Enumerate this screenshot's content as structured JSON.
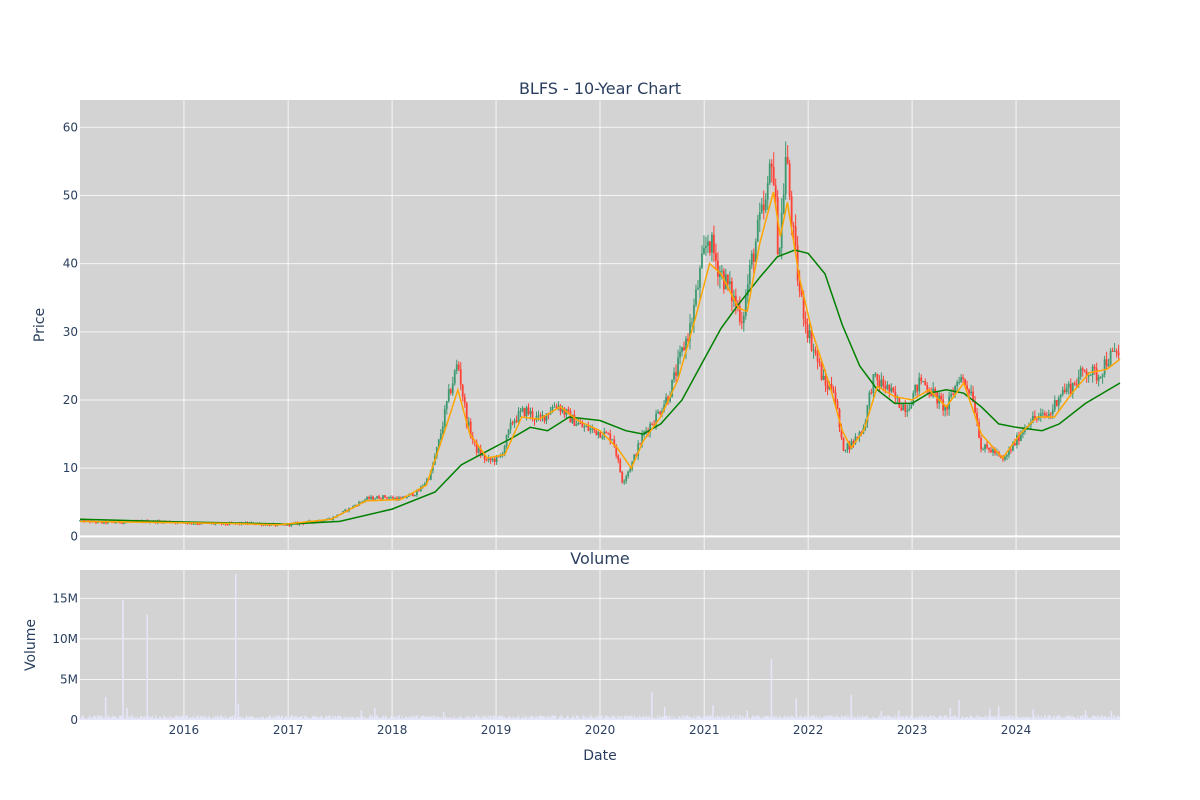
{
  "chart_data": [
    {
      "type": "candlestick",
      "title": "BLFS - 10-Year Chart",
      "ylabel": "Price",
      "xlabel": "",
      "xlim": [
        "2015-01-01",
        "2024-12-31"
      ],
      "ylim": [
        -2,
        64
      ],
      "grid": true,
      "yticks": [
        0,
        10,
        20,
        30,
        40,
        50,
        60
      ],
      "colors": {
        "up": "#3d9970",
        "down": "#ff4136",
        "ma_short": "#ffa500",
        "ma_long": "#008000",
        "plot_bg": "#d3d3d3"
      },
      "price_points": [
        [
          "2015-01-01",
          2.3
        ],
        [
          "2015-03-15",
          2.0
        ],
        [
          "2015-06-01",
          2.1
        ],
        [
          "2015-09-01",
          2.2
        ],
        [
          "2015-12-01",
          2.1
        ],
        [
          "2016-03-01",
          1.9
        ],
        [
          "2016-06-01",
          1.8
        ],
        [
          "2016-09-01",
          1.9
        ],
        [
          "2016-12-01",
          1.6
        ],
        [
          "2017-03-01",
          2.0
        ],
        [
          "2017-06-01",
          2.6
        ],
        [
          "2017-08-01",
          4.0
        ],
        [
          "2017-10-01",
          5.5
        ],
        [
          "2017-12-01",
          5.8
        ],
        [
          "2018-02-01",
          5.5
        ],
        [
          "2018-04-01",
          6.5
        ],
        [
          "2018-05-15",
          9.0
        ],
        [
          "2018-06-15",
          14.0
        ],
        [
          "2018-07-15",
          20.0
        ],
        [
          "2018-08-20",
          25.5
        ],
        [
          "2018-09-20",
          17.0
        ],
        [
          "2018-10-20",
          13.0
        ],
        [
          "2018-12-01",
          11.0
        ],
        [
          "2019-01-15",
          11.5
        ],
        [
          "2019-03-01",
          17.0
        ],
        [
          "2019-04-15",
          18.5
        ],
        [
          "2019-06-01",
          17.0
        ],
        [
          "2019-08-01",
          19.5
        ],
        [
          "2019-09-15",
          17.5
        ],
        [
          "2019-11-01",
          16.0
        ],
        [
          "2019-12-15",
          15.5
        ],
        [
          "2020-02-15",
          14.5
        ],
        [
          "2020-03-20",
          8.0
        ],
        [
          "2020-04-20",
          10.5
        ],
        [
          "2020-06-01",
          15.0
        ],
        [
          "2020-07-15",
          17.5
        ],
        [
          "2020-09-01",
          21.0
        ],
        [
          "2020-10-15",
          27.0
        ],
        [
          "2020-11-15",
          31.0
        ],
        [
          "2020-12-15",
          38.0
        ],
        [
          "2021-01-15",
          44.0
        ],
        [
          "2021-02-15",
          40.0
        ],
        [
          "2021-04-01",
          36.0
        ],
        [
          "2021-05-15",
          32.0
        ],
        [
          "2021-06-15",
          40.0
        ],
        [
          "2021-07-15",
          46.0
        ],
        [
          "2021-08-10",
          49.0
        ],
        [
          "2021-08-25",
          57.0
        ],
        [
          "2021-09-20",
          41.0
        ],
        [
          "2021-10-15",
          56.0
        ],
        [
          "2021-11-10",
          44.0
        ],
        [
          "2021-12-01",
          36.0
        ],
        [
          "2022-01-01",
          30.0
        ],
        [
          "2022-02-01",
          26.0
        ],
        [
          "2022-03-01",
          22.0
        ],
        [
          "2022-04-01",
          22.0
        ],
        [
          "2022-05-01",
          13.0
        ],
        [
          "2022-06-01",
          13.5
        ],
        [
          "2022-07-15",
          16.0
        ],
        [
          "2022-08-15",
          23.0
        ],
        [
          "2022-10-01",
          22.0
        ],
        [
          "2022-11-15",
          19.5
        ],
        [
          "2022-12-15",
          19.0
        ],
        [
          "2023-02-01",
          23.0
        ],
        [
          "2023-03-15",
          21.0
        ],
        [
          "2023-05-01",
          18.5
        ],
        [
          "2023-06-15",
          23.5
        ],
        [
          "2023-08-01",
          21.0
        ],
        [
          "2023-09-01",
          13.0
        ],
        [
          "2023-10-15",
          12.5
        ],
        [
          "2023-11-15",
          11.0
        ],
        [
          "2024-01-01",
          14.0
        ],
        [
          "2024-02-15",
          17.0
        ],
        [
          "2024-04-01",
          17.5
        ],
        [
          "2024-05-01",
          18.0
        ],
        [
          "2024-06-01",
          21.0
        ],
        [
          "2024-07-15",
          22.0
        ],
        [
          "2024-09-01",
          24.5
        ],
        [
          "2024-10-15",
          23.5
        ],
        [
          "2024-11-15",
          26.0
        ],
        [
          "2024-12-31",
          27.0
        ]
      ],
      "ma_short": [
        [
          "2015-01-01",
          2.2
        ],
        [
          "2016-06-01",
          1.9
        ],
        [
          "2016-12-01",
          1.7
        ],
        [
          "2017-06-01",
          2.5
        ],
        [
          "2017-10-01",
          5.2
        ],
        [
          "2018-02-01",
          5.4
        ],
        [
          "2018-05-01",
          7.5
        ],
        [
          "2018-07-01",
          15.0
        ],
        [
          "2018-08-20",
          21.5
        ],
        [
          "2018-10-01",
          15.0
        ],
        [
          "2018-12-01",
          11.5
        ],
        [
          "2019-02-01",
          12.0
        ],
        [
          "2019-04-01",
          17.5
        ],
        [
          "2019-06-01",
          17.2
        ],
        [
          "2019-08-15",
          19.0
        ],
        [
          "2019-10-15",
          17.0
        ],
        [
          "2020-01-01",
          15.5
        ],
        [
          "2020-03-01",
          13.0
        ],
        [
          "2020-04-20",
          10.0
        ],
        [
          "2020-06-01",
          14.0
        ],
        [
          "2020-08-01",
          17.5
        ],
        [
          "2020-10-01",
          23.0
        ],
        [
          "2020-12-01",
          32.0
        ],
        [
          "2021-01-20",
          40.0
        ],
        [
          "2021-03-01",
          38.5
        ],
        [
          "2021-05-01",
          33.5
        ],
        [
          "2021-06-01",
          33.0
        ],
        [
          "2021-07-15",
          43.0
        ],
        [
          "2021-09-01",
          50.5
        ],
        [
          "2021-09-25",
          44.0
        ],
        [
          "2021-10-20",
          49.0
        ],
        [
          "2021-12-01",
          38.0
        ],
        [
          "2022-01-15",
          30.0
        ],
        [
          "2022-03-15",
          22.5
        ],
        [
          "2022-05-01",
          15.5
        ],
        [
          "2022-06-01",
          13.0
        ],
        [
          "2022-07-15",
          15.5
        ],
        [
          "2022-09-01",
          22.0
        ],
        [
          "2022-11-01",
          20.5
        ],
        [
          "2023-01-01",
          20.0
        ],
        [
          "2023-03-01",
          21.5
        ],
        [
          "2023-05-01",
          19.0
        ],
        [
          "2023-07-01",
          22.5
        ],
        [
          "2023-09-01",
          15.0
        ],
        [
          "2023-11-15",
          11.5
        ],
        [
          "2024-01-15",
          15.0
        ],
        [
          "2024-03-15",
          17.5
        ],
        [
          "2024-05-15",
          17.5
        ],
        [
          "2024-07-15",
          21.0
        ],
        [
          "2024-09-15",
          24.0
        ],
        [
          "2024-11-15",
          24.5
        ],
        [
          "2024-12-31",
          26.0
        ]
      ],
      "ma_long": [
        [
          "2015-01-01",
          2.5
        ],
        [
          "2016-01-01",
          2.1
        ],
        [
          "2017-01-01",
          1.8
        ],
        [
          "2017-07-01",
          2.2
        ],
        [
          "2018-01-01",
          4.0
        ],
        [
          "2018-06-01",
          6.5
        ],
        [
          "2018-09-01",
          10.5
        ],
        [
          "2018-12-01",
          12.5
        ],
        [
          "2019-03-01",
          14.5
        ],
        [
          "2019-05-01",
          16.0
        ],
        [
          "2019-07-01",
          15.5
        ],
        [
          "2019-09-15",
          17.5
        ],
        [
          "2020-01-01",
          17.0
        ],
        [
          "2020-04-01",
          15.5
        ],
        [
          "2020-06-01",
          15.0
        ],
        [
          "2020-08-01",
          16.5
        ],
        [
          "2020-10-15",
          20.0
        ],
        [
          "2021-01-01",
          26.0
        ],
        [
          "2021-03-01",
          30.5
        ],
        [
          "2021-05-01",
          34.0
        ],
        [
          "2021-07-15",
          38.0
        ],
        [
          "2021-09-15",
          41.0
        ],
        [
          "2021-11-15",
          42.0
        ],
        [
          "2022-01-01",
          41.5
        ],
        [
          "2022-03-01",
          38.5
        ],
        [
          "2022-05-01",
          31.0
        ],
        [
          "2022-07-01",
          25.0
        ],
        [
          "2022-09-01",
          21.5
        ],
        [
          "2022-11-01",
          19.5
        ],
        [
          "2023-01-01",
          19.5
        ],
        [
          "2023-03-01",
          21.0
        ],
        [
          "2023-05-01",
          21.5
        ],
        [
          "2023-07-01",
          21.0
        ],
        [
          "2023-09-01",
          19.0
        ],
        [
          "2023-11-01",
          16.5
        ],
        [
          "2024-01-01",
          16.0
        ],
        [
          "2024-04-01",
          15.5
        ],
        [
          "2024-06-01",
          16.5
        ],
        [
          "2024-09-01",
          19.5
        ],
        [
          "2024-12-31",
          22.5
        ]
      ]
    },
    {
      "type": "bar",
      "title": "Volume",
      "ylabel": "Volume",
      "xlabel": "Date",
      "xlim": [
        "2015-01-01",
        "2024-12-31"
      ],
      "ylim": [
        0,
        18500000
      ],
      "grid": true,
      "yticks": [
        0,
        5000000,
        10000000,
        15000000
      ],
      "ytick_labels": [
        "0",
        "5M",
        "10M",
        "15M"
      ],
      "xticks": [
        "2016-01-01",
        "2017-01-01",
        "2018-01-01",
        "2019-01-01",
        "2020-01-01",
        "2021-01-01",
        "2022-01-01",
        "2023-01-01",
        "2024-01-01"
      ],
      "xtick_labels": [
        "2016",
        "2017",
        "2018",
        "2019",
        "2020",
        "2021",
        "2022",
        "2023",
        "2024"
      ],
      "bar_color": "#e6e6fa",
      "spikes": [
        [
          "2015-04-01",
          2800000
        ],
        [
          "2015-06-01",
          14800000
        ],
        [
          "2015-06-15",
          1500000
        ],
        [
          "2015-08-25",
          13000000
        ],
        [
          "2016-07-01",
          18000000
        ],
        [
          "2016-07-10",
          2000000
        ],
        [
          "2017-09-15",
          1200000
        ],
        [
          "2017-11-01",
          1500000
        ],
        [
          "2018-07-01",
          1000000
        ],
        [
          "2020-07-01",
          3400000
        ],
        [
          "2020-08-15",
          1600000
        ],
        [
          "2021-02-01",
          1800000
        ],
        [
          "2021-06-01",
          1200000
        ],
        [
          "2021-08-25",
          7500000
        ],
        [
          "2021-11-20",
          2700000
        ],
        [
          "2022-06-01",
          3100000
        ],
        [
          "2022-09-15",
          1100000
        ],
        [
          "2022-11-15",
          1200000
        ],
        [
          "2023-05-15",
          1500000
        ],
        [
          "2023-06-15",
          2500000
        ],
        [
          "2023-10-01",
          1400000
        ],
        [
          "2023-11-01",
          1700000
        ],
        [
          "2024-03-01",
          1300000
        ],
        [
          "2024-09-01",
          1200000
        ],
        [
          "2024-12-01",
          1100000
        ]
      ],
      "baseline_level": 400000
    }
  ]
}
